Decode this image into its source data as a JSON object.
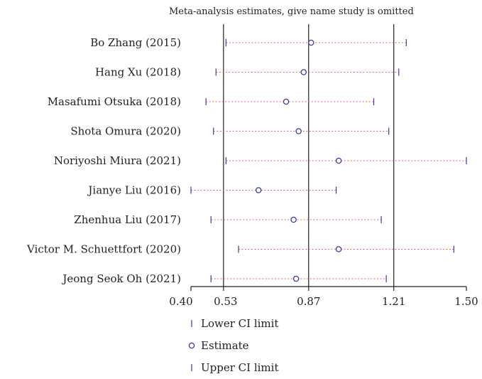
{
  "chart_data": {
    "type": "forest",
    "title": "Meta-analysis estimates, give name study is omitted",
    "studies": [
      {
        "label": "Bo Zhang (2015)",
        "lower": 0.54,
        "estimate": 0.88,
        "upper": 1.26
      },
      {
        "label": "Hang Xu (2018)",
        "lower": 0.5,
        "estimate": 0.85,
        "upper": 1.23
      },
      {
        "label": "Masafumi Otsuka (2018)",
        "lower": 0.46,
        "estimate": 0.78,
        "upper": 1.13
      },
      {
        "label": "Shota Omura (2020)",
        "lower": 0.49,
        "estimate": 0.83,
        "upper": 1.19
      },
      {
        "label": "Noriyoshi Miura (2021)",
        "lower": 0.54,
        "estimate": 0.99,
        "upper": 1.5
      },
      {
        "label": "Jianye Liu (2016)",
        "lower": 0.4,
        "estimate": 0.67,
        "upper": 0.98
      },
      {
        "label": "Zhenhua Liu (2017)",
        "lower": 0.48,
        "estimate": 0.81,
        "upper": 1.16
      },
      {
        "label": "Victor M. Schuettfort (2020)",
        "lower": 0.59,
        "estimate": 0.99,
        "upper": 1.45
      },
      {
        "label": "Jeong Seok Oh (2021)",
        "lower": 0.48,
        "estimate": 0.82,
        "upper": 1.18
      }
    ],
    "xticks": [
      0.4,
      0.53,
      0.87,
      1.21,
      1.5
    ],
    "xtick_labels": [
      "0.40",
      "0.53",
      "0.87",
      "1.21",
      "1.50"
    ],
    "xlim": [
      0.4,
      1.5
    ],
    "reference_lines": [
      0.53,
      0.87,
      1.21
    ],
    "legend": {
      "placement": "bottom-left",
      "items": [
        {
          "key": "lower",
          "label": "Lower CI limit"
        },
        {
          "key": "estimate",
          "label": "Estimate"
        },
        {
          "key": "upper",
          "label": "Upper CI limit"
        }
      ]
    },
    "colors": {
      "ci_line": "#e2666a",
      "marker": "#3b3b9a",
      "axis": "#231f20"
    }
  }
}
